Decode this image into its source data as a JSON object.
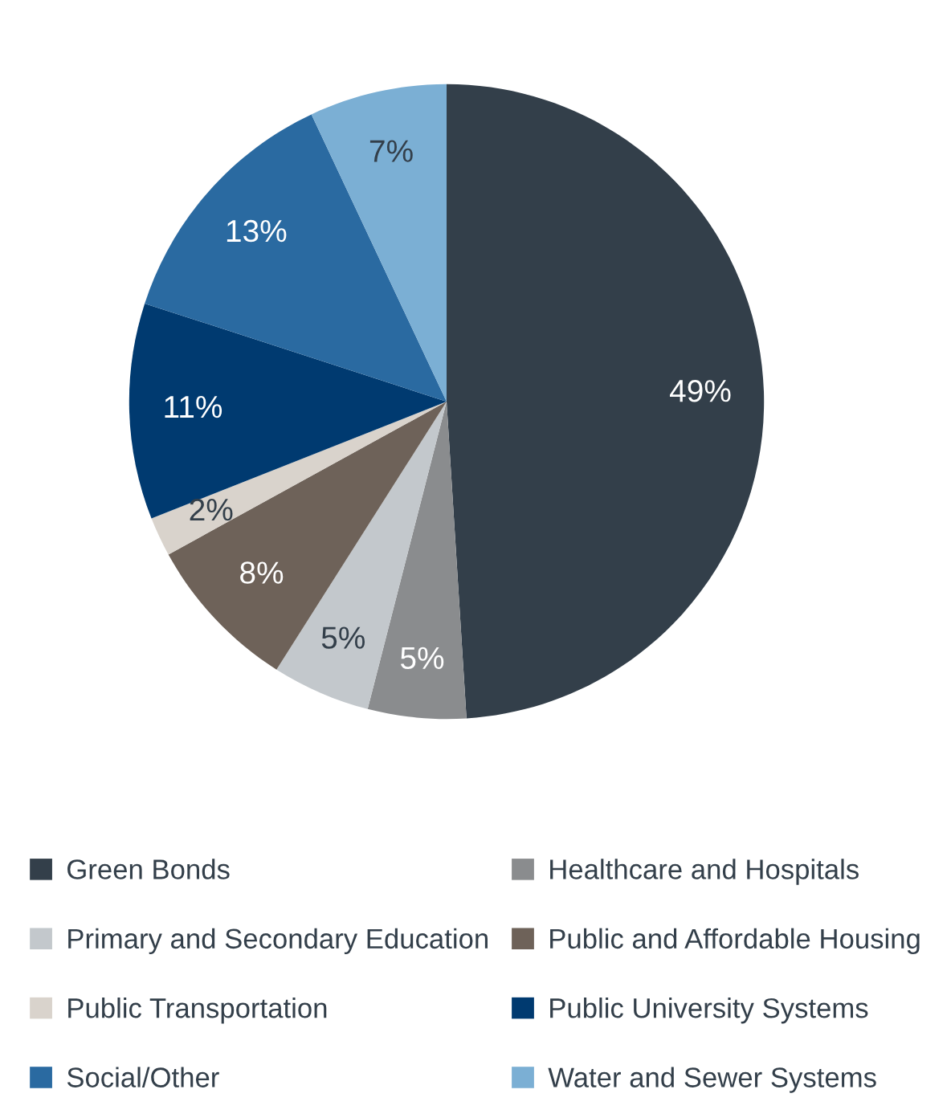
{
  "chart_data": {
    "type": "pie",
    "categories": [
      "Green Bonds",
      "Healthcare and Hospitals",
      "Primary and Secondary Education",
      "Public and Affordable Housing",
      "Public Transportation",
      "Public University Systems",
      "Social/Other",
      "Water and Sewer Systems"
    ],
    "values": [
      49,
      5,
      5,
      8,
      2,
      11,
      13,
      7
    ],
    "value_labels": [
      "49%",
      "5%",
      "5%",
      "8%",
      "2%",
      "11%",
      "13%",
      "7%"
    ],
    "colors": [
      "#333f4a",
      "#8a8c8e",
      "#c3c8cc",
      "#6e6259",
      "#d9d3cc",
      "#003a70",
      "#2a6aa1",
      "#7bafd4"
    ],
    "legend": "bottom"
  }
}
